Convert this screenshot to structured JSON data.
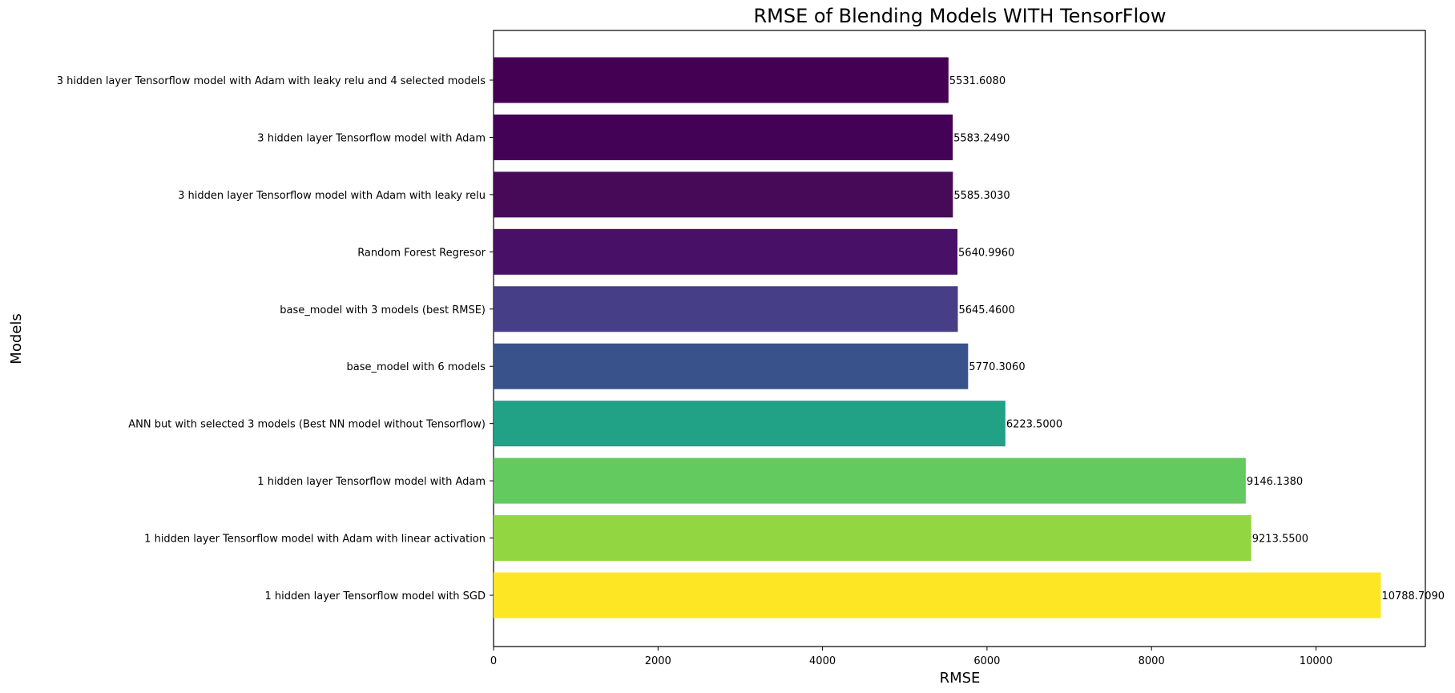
{
  "chart_data": {
    "type": "bar",
    "orientation": "horizontal",
    "title": "RMSE of Blending Models WITH TensorFlow",
    "xlabel": "RMSE",
    "ylabel": "Models",
    "xlim": [
      0,
      11330
    ],
    "xticks": [
      0,
      2000,
      4000,
      6000,
      8000,
      10000
    ],
    "grid": false,
    "categories": [
      "3 hidden layer Tensorflow model with Adam with leaky relu and 4 selected models",
      "3 hidden layer Tensorflow model with Adam",
      "3 hidden layer Tensorflow model with Adam with leaky relu",
      "Random Forest Regresor",
      "base_model with 3 models (best RMSE)",
      "base_model with 6 models",
      "ANN but with selected 3 models (Best NN model without Tensorflow)",
      "1 hidden layer Tensorflow model with Adam",
      "1 hidden layer Tensorflow model with Adam with linear activation",
      "1 hidden layer Tensorflow model with SGD"
    ],
    "values": [
      5531.608,
      5583.249,
      5585.303,
      5640.996,
      5645.46,
      5770.306,
      6223.5,
      9146.138,
      9213.55,
      10788.709
    ],
    "value_labels": [
      "5531.6080",
      "5583.2490",
      "5585.3030",
      "5640.9960",
      "5645.4600",
      "5770.3060",
      "6223.5000",
      "9146.1380",
      "9213.5500",
      "10788.7090"
    ],
    "colors": [
      "#440154",
      "#440256",
      "#470a59",
      "#481167",
      "#463e86",
      "#3a528b",
      "#21a186",
      "#62ca5f",
      "#92d742",
      "#fde725"
    ]
  }
}
